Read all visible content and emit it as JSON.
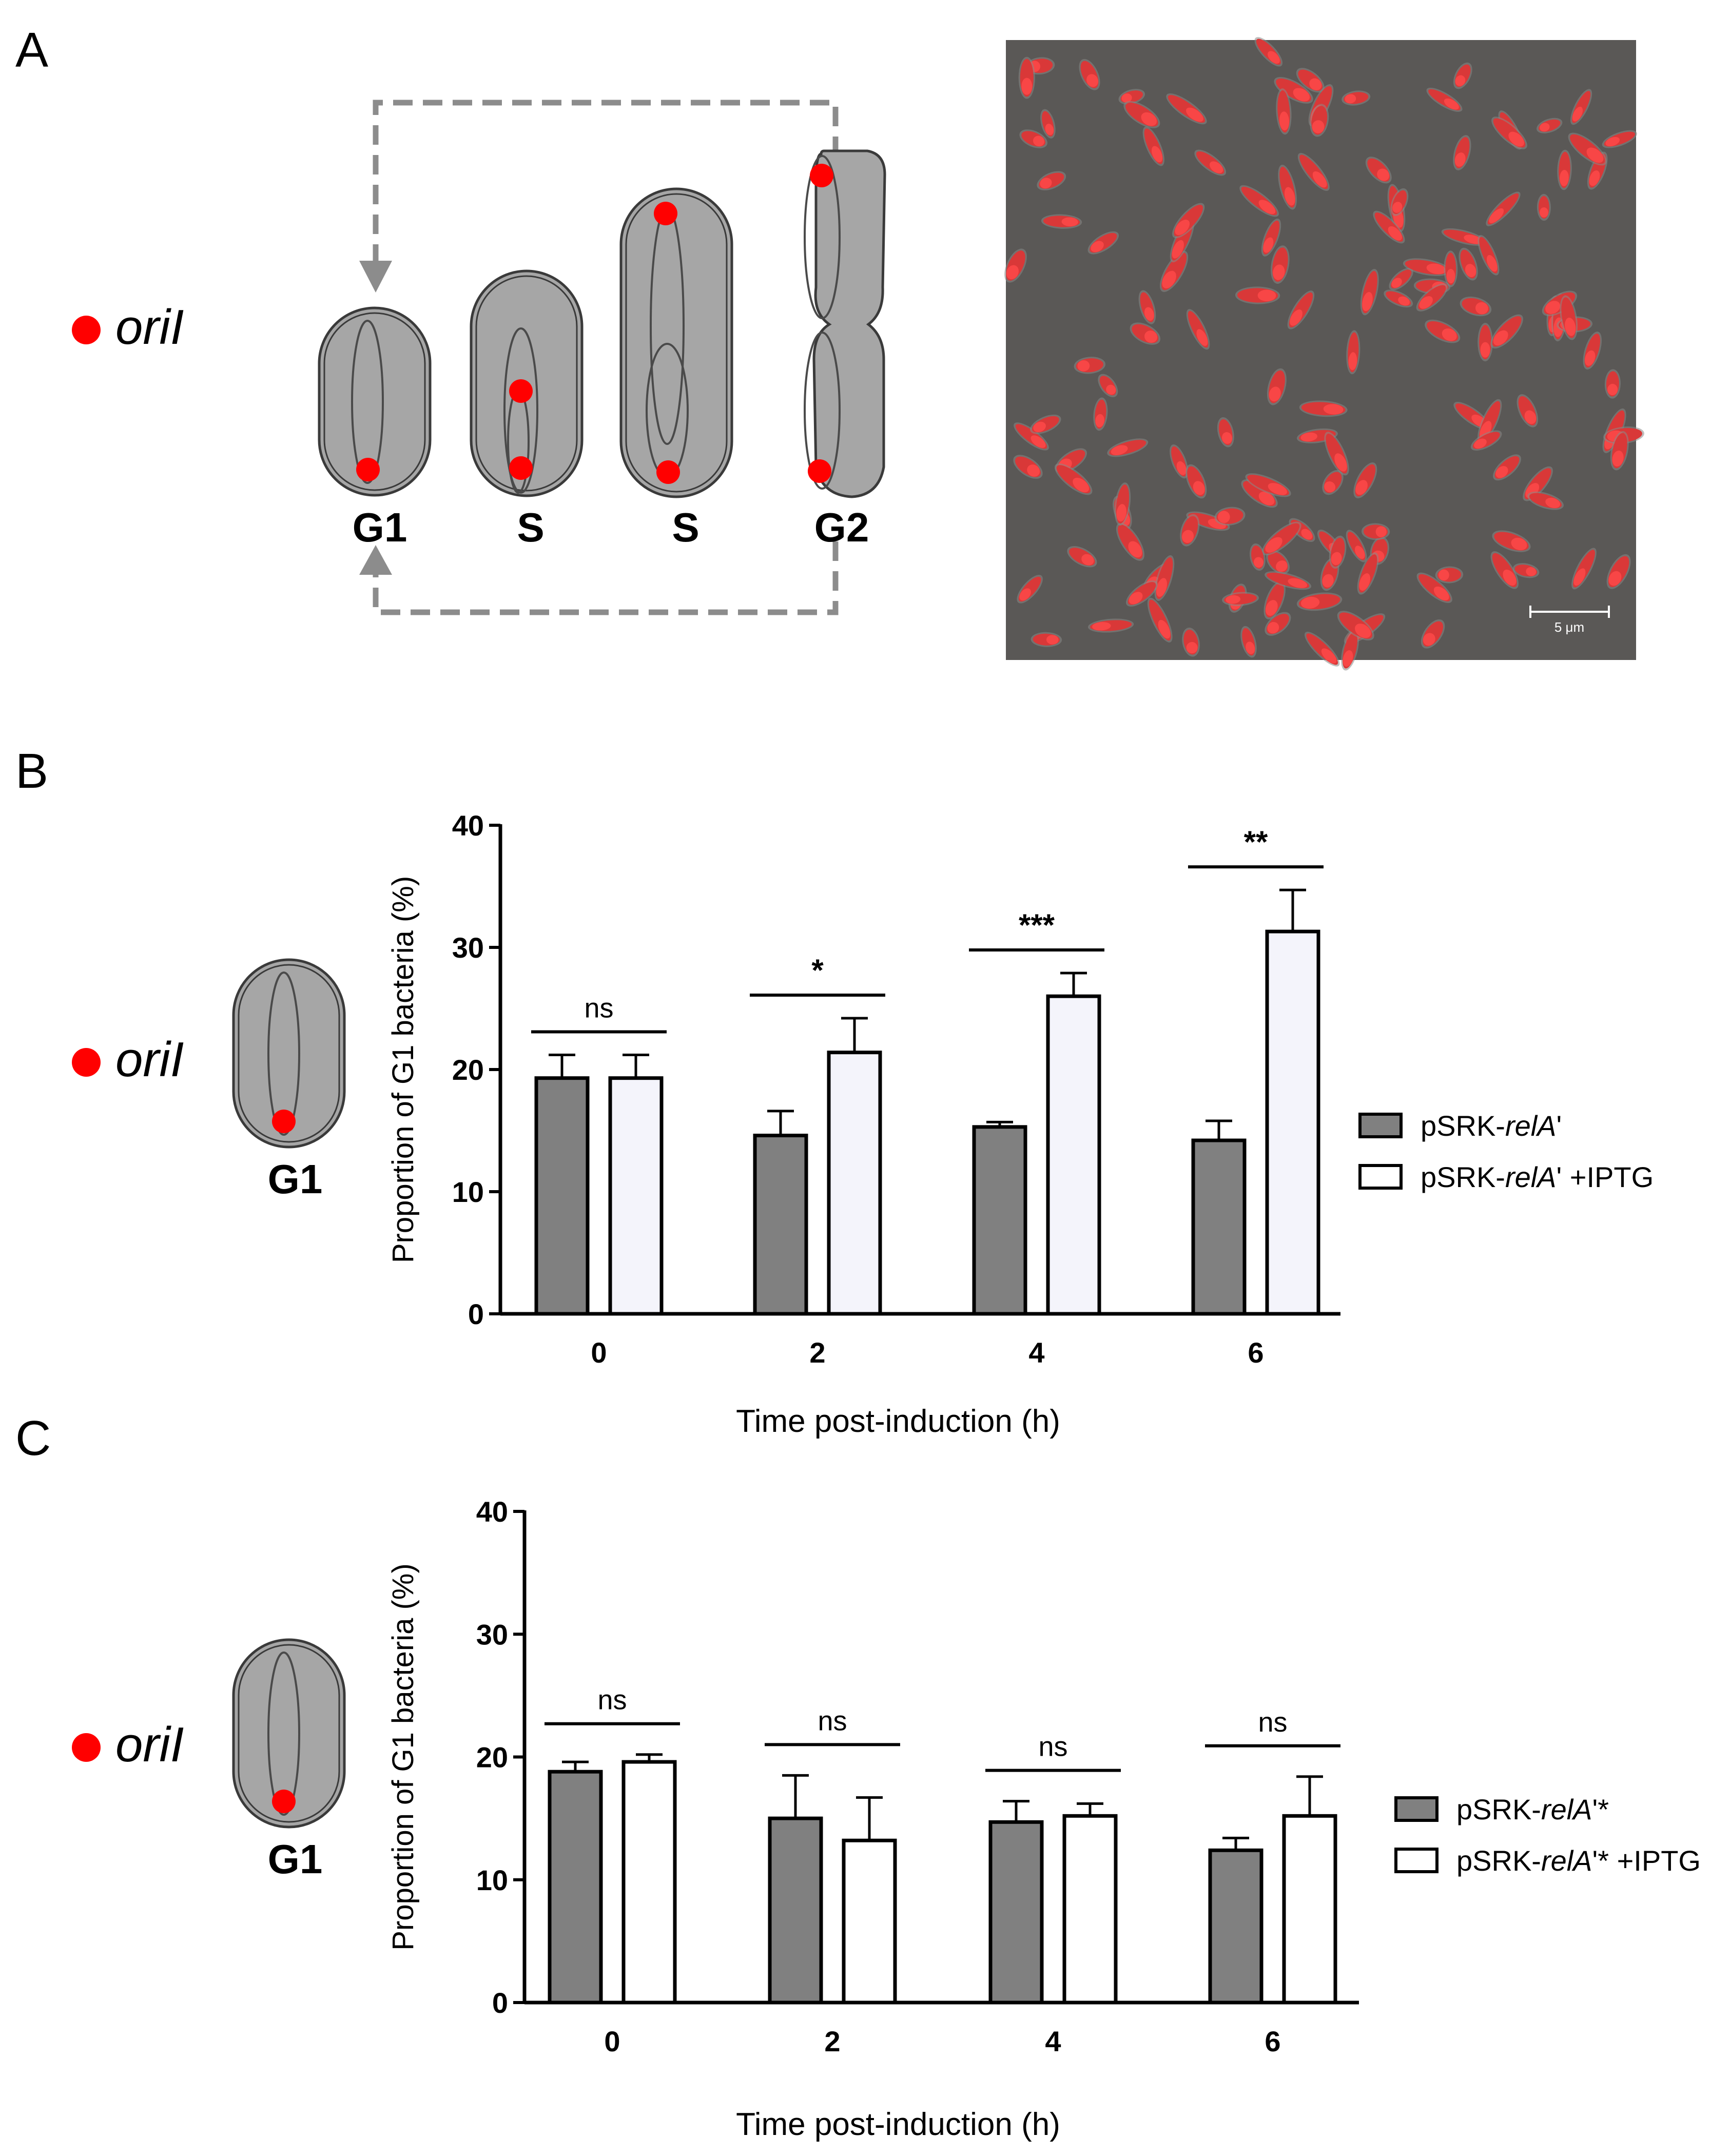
{
  "panels": {
    "a": "A",
    "b": "B",
    "c": "C"
  },
  "oril_label": "oriI",
  "cell_cycle": {
    "phases": [
      "G1",
      "S",
      "S",
      "G2"
    ]
  },
  "micrograph": {
    "scale_bar_label": "5 μm"
  },
  "colors": {
    "oril_dot": "#ff0000",
    "cell_fill": "#a6a6a6",
    "micrograph_bg": "#5a5856",
    "bacteria": "#d93838",
    "dashed_arrow": "#8c8c8c",
    "bar_dark": "#808080",
    "bar_light_b": "#f4f4fb",
    "bar_light_c": "#ffffff"
  },
  "chart_data": [
    {
      "type": "bar",
      "panel": "B",
      "categories": [
        "0",
        "2",
        "4",
        "6"
      ],
      "ylabel": "Proportion of G1 bacteria (%)",
      "xlabel": "Time post-induction (h)",
      "ylim": [
        0,
        40
      ],
      "yticks": [
        0,
        10,
        20,
        30,
        40
      ],
      "series": [
        {
          "name_parts": [
            "pSRK-",
            "relA",
            "'"
          ],
          "values": [
            19.3,
            14.6,
            15.3,
            14.2
          ],
          "errors": [
            1.9,
            2.0,
            0.4,
            1.6
          ]
        },
        {
          "name_parts": [
            "pSRK-",
            "relA",
            "' +IPTG"
          ],
          "values": [
            19.3,
            21.4,
            26.0,
            31.3
          ],
          "errors": [
            1.9,
            2.8,
            1.9,
            3.4
          ]
        }
      ],
      "significance": [
        "ns",
        "*",
        "***",
        "**"
      ],
      "legend": "right"
    },
    {
      "type": "bar",
      "panel": "C",
      "categories": [
        "0",
        "2",
        "4",
        "6"
      ],
      "ylabel": "Proportion of G1 bacteria (%)",
      "xlabel": "Time post-induction (h)",
      "ylim": [
        0,
        40
      ],
      "yticks": [
        0,
        10,
        20,
        30,
        40
      ],
      "series": [
        {
          "name_parts": [
            "pSRK-",
            "relA",
            "'*"
          ],
          "values": [
            18.8,
            15.0,
            14.7,
            12.4
          ],
          "errors": [
            0.8,
            3.5,
            1.7,
            1.0
          ]
        },
        {
          "name_parts": [
            "pSRK-",
            "relA",
            "'* +IPTG"
          ],
          "values": [
            19.6,
            13.2,
            15.2,
            15.2
          ],
          "errors": [
            0.6,
            3.5,
            1.0,
            3.2
          ]
        }
      ],
      "significance": [
        "ns",
        "ns",
        "ns",
        "ns"
      ],
      "legend": "right"
    }
  ]
}
